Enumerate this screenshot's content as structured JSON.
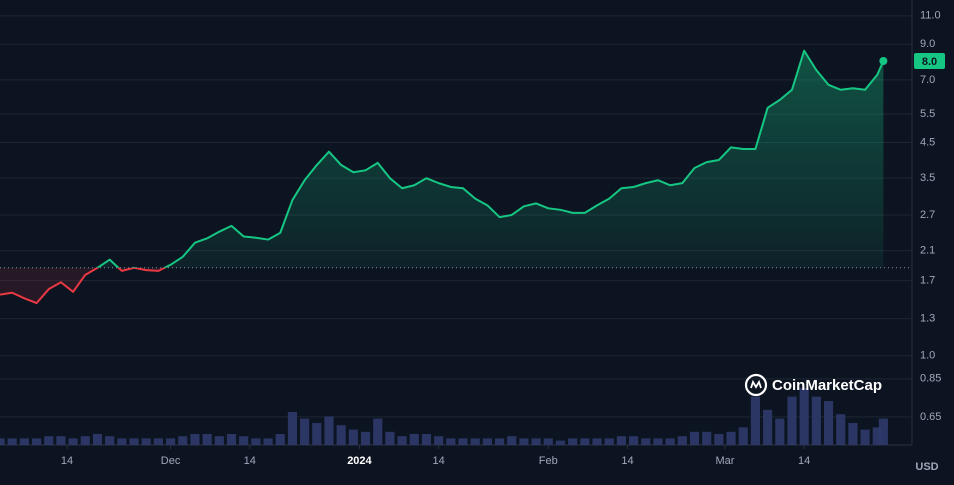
{
  "chart_data": {
    "type": "line",
    "watermark": "CoinMarketCap",
    "currency": "USD",
    "log_scale": true,
    "grid": true,
    "color_up": "#16c784",
    "color_down": "#ea3943",
    "baseline": 1.86,
    "current_price": {
      "value": 8.0,
      "label": "8.0"
    },
    "xlim": [
      0,
      149.7
    ],
    "ylim": [
      0.533,
      12.3
    ],
    "y2lim": [
      0,
      100
    ],
    "xticks": [
      {
        "value": 11,
        "label": "14"
      },
      {
        "value": 28,
        "label": "Dec"
      },
      {
        "value": 41,
        "label": "14"
      },
      {
        "value": 59,
        "label": "2024"
      },
      {
        "value": 72,
        "label": "14"
      },
      {
        "value": 90,
        "label": "Feb"
      },
      {
        "value": 103,
        "label": "14"
      },
      {
        "value": 119,
        "label": "Mar"
      },
      {
        "value": 132,
        "label": "14"
      }
    ],
    "yticks": [
      {
        "value": 11,
        "label": "11.0"
      },
      {
        "value": 9,
        "label": "9.0"
      },
      {
        "value": 7,
        "label": "7.0"
      },
      5.5,
      4.5,
      3.5,
      2.7,
      2.1,
      1.7,
      1.3,
      {
        "value": 1,
        "label": "1.0"
      },
      0.85,
      0.65
    ],
    "x": [
      0,
      2,
      4,
      6,
      8,
      10,
      12,
      14,
      16,
      18,
      20,
      22,
      24,
      26,
      28,
      30,
      32,
      34,
      36,
      38,
      40,
      42,
      44,
      46,
      48,
      50,
      52,
      54,
      56,
      58,
      60,
      62,
      64,
      66,
      68,
      70,
      72,
      74,
      76,
      78,
      80,
      82,
      84,
      86,
      88,
      90,
      92,
      94,
      96,
      98,
      100,
      102,
      104,
      106,
      108,
      110,
      112,
      114,
      116,
      118,
      120,
      122,
      124,
      126,
      128,
      130,
      132,
      134,
      136,
      138,
      140,
      142,
      144,
      145
    ],
    "values": [
      1.54,
      1.56,
      1.5,
      1.45,
      1.6,
      1.68,
      1.57,
      1.77,
      1.86,
      1.97,
      1.82,
      1.86,
      1.83,
      1.82,
      1.9,
      2.01,
      2.22,
      2.29,
      2.4,
      2.5,
      2.32,
      2.3,
      2.27,
      2.38,
      3.0,
      3.45,
      3.84,
      4.22,
      3.84,
      3.65,
      3.7,
      3.9,
      3.5,
      3.26,
      3.33,
      3.5,
      3.38,
      3.29,
      3.26,
      3.03,
      2.89,
      2.66,
      2.7,
      2.87,
      2.93,
      2.83,
      2.8,
      2.74,
      2.74,
      2.89,
      3.03,
      3.26,
      3.29,
      3.38,
      3.45,
      3.33,
      3.38,
      3.76,
      3.92,
      3.98,
      4.35,
      4.3,
      4.3,
      5.75,
      6.08,
      6.53,
      8.6,
      7.5,
      6.76,
      6.53,
      6.6,
      6.53,
      7.26,
      8.0
    ],
    "volume": {
      "color": "#2f3a6b",
      "axis": "y2",
      "values": [
        3,
        3,
        3,
        3,
        4,
        4,
        3,
        4,
        5,
        4,
        3,
        3,
        3,
        3,
        3,
        4,
        5,
        5,
        4,
        5,
        4,
        3,
        3,
        5,
        15,
        12,
        10,
        13,
        9,
        7,
        6,
        12,
        6,
        4,
        5,
        5,
        4,
        3,
        3,
        3,
        3,
        3,
        4,
        3,
        3,
        3,
        2,
        3,
        3,
        3,
        3,
        4,
        4,
        3,
        3,
        3,
        4,
        6,
        6,
        5,
        6,
        8,
        22,
        16,
        12,
        22,
        26,
        22,
        20,
        14,
        10,
        7,
        8,
        12
      ]
    }
  }
}
